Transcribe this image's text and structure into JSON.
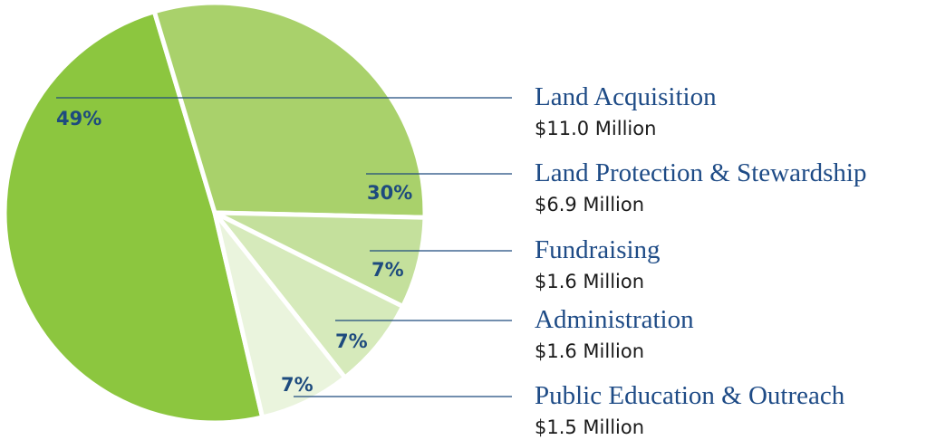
{
  "chart_data": {
    "type": "pie",
    "categories": [
      "Land Acquisition",
      "Land Protection & Stewardship",
      "Fundraising",
      "Administration",
      "Public Education & Outreach"
    ],
    "values": [
      49,
      30,
      7,
      7,
      7
    ],
    "value_labels": [
      "49%",
      "30%",
      "7%",
      "7%",
      "7%"
    ],
    "amount_labels": [
      "$11.0 Million",
      "$6.9 Million",
      "$1.6 Million",
      "$1.6 Million",
      "$1.5 Million"
    ],
    "colors": [
      "#8cc63f",
      "#a9d16b",
      "#c4e09c",
      "#d6eabb",
      "#eaf4dd"
    ]
  }
}
